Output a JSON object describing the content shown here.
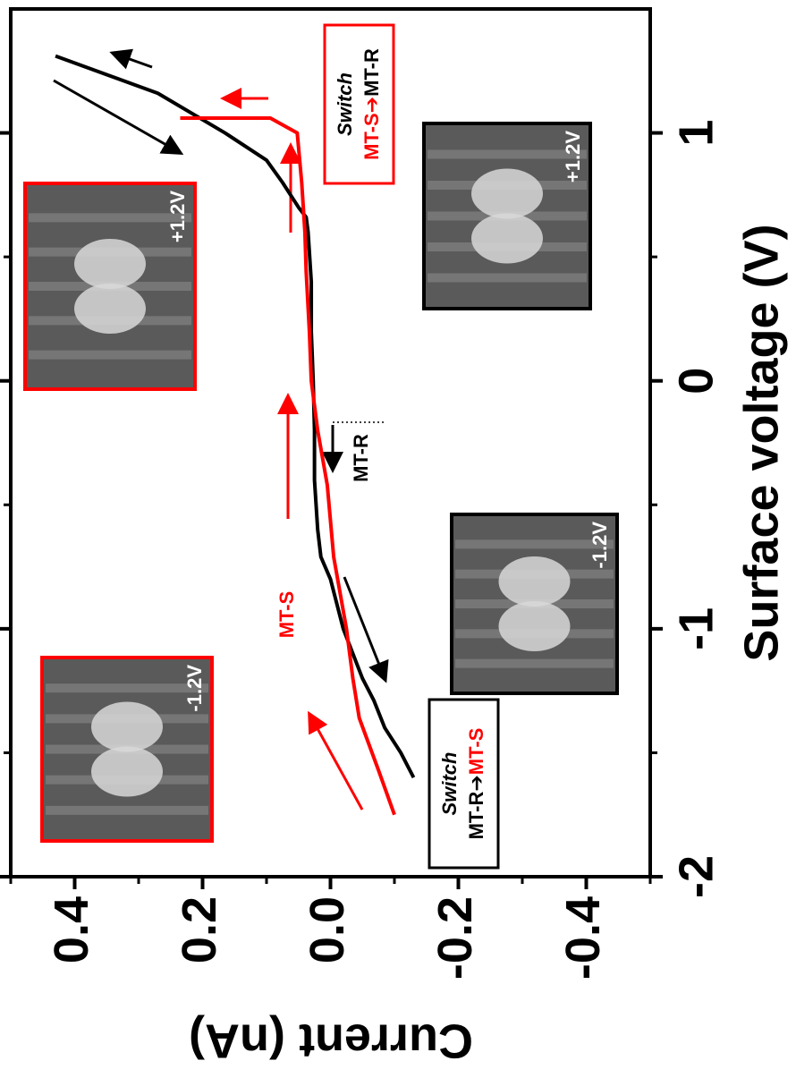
{
  "chart_data": {
    "type": "line",
    "x_label": "Surface voltage (V)",
    "y_label": "Current (nA)",
    "xlim": [
      -2,
      1.5
    ],
    "ylim": [
      -0.5,
      0.5
    ],
    "xticks": [
      -2,
      -1,
      0,
      1
    ],
    "xminor_ticks": [
      -1.5,
      -0.5,
      0.5
    ],
    "yticks": [
      -0.4,
      -0.2,
      {
        "value": 0,
        "label": "0.0"
      },
      0.2,
      0.4
    ],
    "yminor_ticks": [
      -0.5,
      -0.3,
      -0.1,
      0.1,
      0.3,
      0.5
    ],
    "series": [
      {
        "color": "#000000",
        "x": [
          -1.6,
          -1.5,
          -1.4,
          -1.29,
          -1.2,
          -1.0,
          -0.8,
          -0.71,
          -0.6,
          -0.4,
          -0.2,
          0,
          0.2,
          0.4,
          0.6,
          0.66,
          0.7,
          0.8,
          0.89,
          1.0,
          1.16,
          1.31
        ],
        "values": [
          -0.13,
          -0.11,
          -0.085,
          -0.068,
          -0.05,
          -0.02,
          0.0,
          0.015,
          0.02,
          0.025,
          0.025,
          0.027,
          0.03,
          0.03,
          0.035,
          0.038,
          0.05,
          0.075,
          0.1,
          0.165,
          0.27,
          0.43
        ]
      },
      {
        "color": "#ff0000",
        "x": [
          -1.75,
          -1.57,
          -1.36,
          -1.2,
          -1.0,
          -0.71,
          -0.42,
          -0.2,
          0,
          0.2,
          0.44,
          0.6,
          0.8,
          1.0,
          1.06,
          1.06
        ],
        "values": [
          -0.1,
          -0.075,
          -0.045,
          -0.035,
          -0.025,
          -0.005,
          0.005,
          0.02,
          0.03,
          0.033,
          0.038,
          0.04,
          0.045,
          0.052,
          0.094,
          0.235
        ]
      }
    ],
    "annotations": [
      {
        "text": "MT-S",
        "color": "#ff0000"
      },
      {
        "text": "MT-R",
        "color": "#000000"
      }
    ],
    "insets": [
      {
        "label": "+1.2V",
        "border": "#ff0000"
      },
      {
        "label": "+1.2V",
        "border": "#000000"
      },
      {
        "label": "-1.2V",
        "border": "#000000"
      },
      {
        "label": "-1.2V",
        "border": "#ff0000"
      }
    ],
    "switch_labels": [
      {
        "title": "Switch",
        "from": "MT-S",
        "arrow": "➔",
        "to": "MT-R",
        "border": "#ff0000",
        "from_color": "#ff0000",
        "to_color": "#000000"
      },
      {
        "title": "Switch",
        "from": "MT-R",
        "arrow": "➔",
        "to": "MT-S",
        "border": "#000000",
        "from_color": "#000000",
        "to_color": "#ff0000"
      }
    ]
  }
}
